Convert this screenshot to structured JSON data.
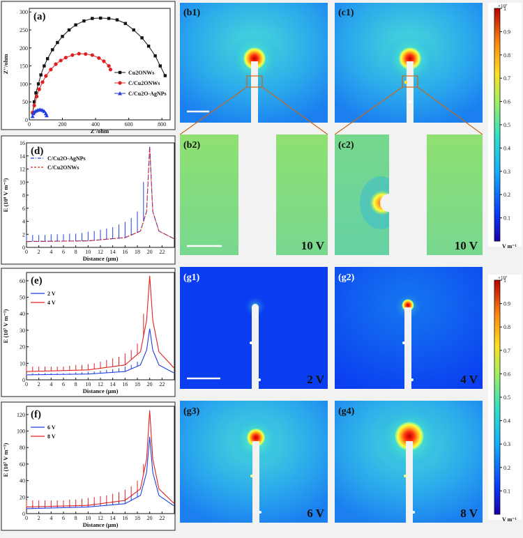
{
  "panels": {
    "a": {
      "label": "(a)",
      "xlabel": "Z'/ohm",
      "ylabel": "Z''/ohm",
      "xticks": [
        "0",
        "200",
        "400",
        "600",
        "800"
      ],
      "yticks": [
        "0",
        "50",
        "100",
        "150",
        "200",
        "250",
        "300"
      ]
    },
    "d": {
      "label": "(d)",
      "xlabel": "Distance (μm)",
      "ylabel": "E (10⁸ V m⁻¹)",
      "xticks": [
        "0",
        "2",
        "4",
        "6",
        "8",
        "10",
        "12",
        "14",
        "16",
        "18",
        "20",
        "22"
      ],
      "yticks": [
        "0",
        "2",
        "4",
        "6",
        "8",
        "10",
        "12",
        "14",
        "16"
      ]
    },
    "e": {
      "label": "(e)",
      "xlabel": "Distance (μm)",
      "ylabel": "E (10⁷ V m⁻¹)",
      "xticks": [
        "0",
        "2",
        "4",
        "6",
        "8",
        "10",
        "12",
        "14",
        "16",
        "18",
        "20",
        "22"
      ],
      "yticks": [
        "0",
        "10",
        "20",
        "30",
        "40",
        "50",
        "60"
      ]
    },
    "f": {
      "label": "(f)",
      "xlabel": "Distance (μm)",
      "ylabel": "E (10⁷ V m⁻¹)",
      "xticks": [
        "0",
        "2",
        "4",
        "6",
        "8",
        "10",
        "12",
        "14",
        "16",
        "18",
        "20",
        "22"
      ],
      "yticks": [
        "0",
        "20",
        "40",
        "60",
        "80",
        "100",
        "120"
      ]
    },
    "maps": {
      "b1": "(b1)",
      "c1": "(c1)",
      "b2": "(b2)",
      "c2": "(c2)",
      "g1": "(g1)",
      "g2": "(g2)",
      "g3": "(g3)",
      "g4": "(g4)",
      "volt_b2": "10 V",
      "volt_c2": "10 V",
      "volt_g1": "2 V",
      "volt_g2": "4 V",
      "volt_g3": "6 V",
      "volt_g4": "8 V"
    },
    "colorbar": {
      "exponent": "×10⁷",
      "ticks": [
        "1",
        "0.9",
        "0.8",
        "0.7",
        "0.6",
        "0.5",
        "0.4",
        "0.3",
        "0.2",
        "0.1"
      ],
      "unit": "V m⁻¹"
    }
  },
  "colors": {
    "black": "#111111",
    "red": "#e02020",
    "blue": "#1f3fe0",
    "field_bg": "#2b8ff0"
  },
  "chart_data": [
    {
      "type": "scatter",
      "panel": "a",
      "xlabel": "Z'/ohm",
      "ylabel": "Z''/ohm",
      "xlim": [
        0,
        850
      ],
      "ylim": [
        0,
        310
      ],
      "series": [
        {
          "name": "Cu2ONWs",
          "color": "#111111",
          "marker": "square",
          "x": [
            20,
            30,
            40,
            55,
            70,
            90,
            110,
            140,
            170,
            200,
            240,
            280,
            330,
            380,
            430,
            480,
            530,
            580,
            630,
            680,
            720,
            760,
            790,
            820
          ],
          "y": [
            20,
            50,
            75,
            100,
            125,
            150,
            170,
            195,
            215,
            232,
            250,
            264,
            275,
            282,
            283,
            282,
            278,
            268,
            250,
            228,
            205,
            178,
            150,
            123
          ]
        },
        {
          "name": "C/Cu2ONWs",
          "color": "#e02020",
          "marker": "circle",
          "x": [
            20,
            30,
            45,
            60,
            80,
            100,
            130,
            160,
            190,
            220,
            260,
            300,
            340,
            380,
            420,
            450,
            480,
            490
          ],
          "y": [
            20,
            40,
            65,
            85,
            105,
            122,
            140,
            155,
            165,
            173,
            180,
            184,
            183,
            180,
            172,
            163,
            150,
            140
          ]
        },
        {
          "name": "C/Cu2O-AgNPs",
          "color": "#1f3fe0",
          "marker": "triangle",
          "x": [
            20,
            25,
            30,
            40,
            50,
            60,
            70,
            80,
            90,
            100,
            105
          ],
          "y": [
            10,
            18,
            22,
            25,
            27,
            28,
            28,
            27,
            24,
            18,
            12
          ]
        }
      ]
    },
    {
      "type": "line",
      "panel": "d",
      "xlabel": "Distance (μm)",
      "ylabel": "E (10⁸ V m⁻¹)",
      "xlim": [
        0,
        24
      ],
      "ylim": [
        0,
        16
      ],
      "series": [
        {
          "name": "C/Cu2O-AgNPs",
          "color": "#1f3fe0",
          "base": [
            [
              0,
              0.9
            ],
            [
              10,
              1.0
            ],
            [
              16,
              1.5
            ],
            [
              18.5,
              2.5
            ],
            [
              19.5,
              5.5
            ],
            [
              20,
              15.5
            ],
            [
              20.5,
              5.5
            ],
            [
              21.5,
              2.5
            ],
            [
              24,
              1.3
            ]
          ],
          "spikes": [
            [
              0,
              1.9
            ],
            [
              1,
              1.9
            ],
            [
              2,
              1.9
            ],
            [
              3,
              1.9
            ],
            [
              4,
              2.0
            ],
            [
              5,
              2.0
            ],
            [
              6,
              2.0
            ],
            [
              7,
              2.1
            ],
            [
              8,
              2.1
            ],
            [
              9,
              2.2
            ],
            [
              10,
              2.4
            ],
            [
              11,
              2.5
            ],
            [
              12,
              2.7
            ],
            [
              13,
              2.9
            ],
            [
              14,
              3.1
            ],
            [
              15,
              3.5
            ],
            [
              16,
              3.9
            ],
            [
              17,
              4.5
            ],
            [
              18,
              5.5
            ],
            [
              19,
              10.0
            ]
          ]
        },
        {
          "name": "C/Cu2ONWs",
          "color": "#e02020",
          "base": [
            [
              0,
              0.9
            ],
            [
              10,
              1.0
            ],
            [
              16,
              1.5
            ],
            [
              18.5,
              2.5
            ],
            [
              19.5,
              5.5
            ],
            [
              20,
              15.3
            ],
            [
              20.5,
              5.5
            ],
            [
              21.5,
              2.5
            ],
            [
              24,
              1.3
            ]
          ]
        }
      ]
    },
    {
      "type": "line",
      "panel": "e",
      "xlabel": "Distance (μm)",
      "ylabel": "E (10⁷ V m⁻¹)",
      "xlim": [
        0,
        24
      ],
      "ylim": [
        0,
        65
      ],
      "series": [
        {
          "name": "2 V",
          "color": "#1f3fe0",
          "base": [
            [
              0,
              3
            ],
            [
              10,
              3.5
            ],
            [
              16,
              5
            ],
            [
              18.5,
              9
            ],
            [
              19.5,
              18
            ],
            [
              20,
              31
            ],
            [
              20.5,
              18
            ],
            [
              21.5,
              9
            ],
            [
              24,
              4
            ]
          ],
          "spikes": [
            [
              0,
              4
            ],
            [
              1,
              4
            ],
            [
              2,
              4
            ],
            [
              3,
              4
            ],
            [
              4,
              4
            ],
            [
              5,
              4
            ],
            [
              6,
              4
            ],
            [
              7,
              4
            ],
            [
              8,
              4.5
            ],
            [
              9,
              4.5
            ],
            [
              10,
              5
            ],
            [
              11,
              5
            ],
            [
              12,
              5.5
            ],
            [
              13,
              6
            ],
            [
              14,
              6.5
            ],
            [
              15,
              7
            ],
            [
              16,
              8
            ],
            [
              17,
              9
            ],
            [
              18,
              11
            ],
            [
              19,
              14
            ]
          ]
        },
        {
          "name": "4 V",
          "color": "#e02020",
          "base": [
            [
              0,
              5
            ],
            [
              10,
              6
            ],
            [
              16,
              9
            ],
            [
              18.5,
              17
            ],
            [
              19.5,
              36
            ],
            [
              20,
              63
            ],
            [
              20.5,
              36
            ],
            [
              21.5,
              17
            ],
            [
              24,
              7
            ]
          ],
          "spikes": [
            [
              0,
              8
            ],
            [
              1,
              8
            ],
            [
              2,
              8
            ],
            [
              3,
              8
            ],
            [
              4,
              8
            ],
            [
              5,
              8
            ],
            [
              6,
              8
            ],
            [
              7,
              8.5
            ],
            [
              8,
              9
            ],
            [
              9,
              9
            ],
            [
              10,
              9.5
            ],
            [
              11,
              10
            ],
            [
              12,
              11
            ],
            [
              13,
              12
            ],
            [
              14,
              13
            ],
            [
              15,
              14
            ],
            [
              16,
              16
            ],
            [
              17,
              18
            ],
            [
              18,
              22
            ],
            [
              19,
              40
            ]
          ]
        }
      ]
    },
    {
      "type": "line",
      "panel": "f",
      "xlabel": "Distance (μm)",
      "ylabel": "E (10⁷ V m⁻¹)",
      "xlim": [
        0,
        24
      ],
      "ylim": [
        0,
        130
      ],
      "series": [
        {
          "name": "6 V",
          "color": "#1f3fe0",
          "base": [
            [
              0,
              6
            ],
            [
              10,
              8
            ],
            [
              16,
              12
            ],
            [
              18.5,
              22
            ],
            [
              19.5,
              50
            ],
            [
              20,
              93
            ],
            [
              20.5,
              50
            ],
            [
              21.5,
              22
            ],
            [
              24,
              9
            ]
          ],
          "spikes": [
            [
              0,
              10
            ],
            [
              1,
              10
            ],
            [
              2,
              10
            ],
            [
              3,
              10
            ],
            [
              4,
              10
            ],
            [
              5,
              10
            ],
            [
              6,
              10
            ],
            [
              7,
              11
            ],
            [
              8,
              11
            ],
            [
              9,
              12
            ],
            [
              10,
              12
            ],
            [
              11,
              13
            ],
            [
              12,
              13
            ],
            [
              13,
              14
            ],
            [
              14,
              15
            ],
            [
              15,
              17
            ],
            [
              16,
              19
            ],
            [
              17,
              22
            ],
            [
              18,
              27
            ],
            [
              19,
              35
            ]
          ]
        },
        {
          "name": "8 V",
          "color": "#e02020",
          "base": [
            [
              0,
              8
            ],
            [
              10,
              10
            ],
            [
              16,
              16
            ],
            [
              18.5,
              30
            ],
            [
              19.5,
              66
            ],
            [
              20,
              125
            ],
            [
              20.5,
              66
            ],
            [
              21.5,
              30
            ],
            [
              24,
              12
            ]
          ],
          "spikes": [
            [
              0,
              16
            ],
            [
              1,
              16
            ],
            [
              2,
              16
            ],
            [
              3,
              16
            ],
            [
              4,
              16
            ],
            [
              5,
              16
            ],
            [
              6,
              16
            ],
            [
              7,
              17
            ],
            [
              8,
              17
            ],
            [
              9,
              18
            ],
            [
              10,
              19
            ],
            [
              11,
              20
            ],
            [
              12,
              21
            ],
            [
              13,
              22
            ],
            [
              14,
              24
            ],
            [
              15,
              26
            ],
            [
              16,
              29
            ],
            [
              17,
              33
            ],
            [
              18,
              40
            ],
            [
              19,
              60
            ]
          ]
        }
      ]
    }
  ]
}
